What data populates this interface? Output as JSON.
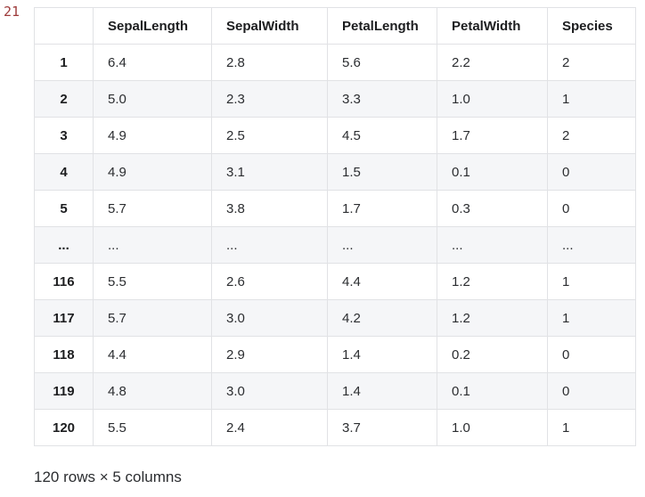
{
  "execution_count": "21",
  "colors": {
    "execution_count": "#9e3b3b",
    "stripe": "#f5f6f8",
    "border": "#e1e2e5",
    "header_text": "#1c1d1f",
    "body_text": "#2b2d30"
  },
  "table": {
    "columns": [
      "",
      "SepalLength",
      "SepalWidth",
      "PetalLength",
      "PetalWidth",
      "Species"
    ],
    "rows": [
      {
        "index": "1",
        "cells": [
          "6.4",
          "2.8",
          "5.6",
          "2.2",
          "2"
        ]
      },
      {
        "index": "2",
        "cells": [
          "5.0",
          "2.3",
          "3.3",
          "1.0",
          "1"
        ]
      },
      {
        "index": "3",
        "cells": [
          "4.9",
          "2.5",
          "4.5",
          "1.7",
          "2"
        ]
      },
      {
        "index": "4",
        "cells": [
          "4.9",
          "3.1",
          "1.5",
          "0.1",
          "0"
        ]
      },
      {
        "index": "5",
        "cells": [
          "5.7",
          "3.8",
          "1.7",
          "0.3",
          "0"
        ]
      },
      {
        "index": "...",
        "cells": [
          "...",
          "...",
          "...",
          "...",
          "..."
        ]
      },
      {
        "index": "116",
        "cells": [
          "5.5",
          "2.6",
          "4.4",
          "1.2",
          "1"
        ]
      },
      {
        "index": "117",
        "cells": [
          "5.7",
          "3.0",
          "4.2",
          "1.2",
          "1"
        ]
      },
      {
        "index": "118",
        "cells": [
          "4.4",
          "2.9",
          "1.4",
          "0.2",
          "0"
        ]
      },
      {
        "index": "119",
        "cells": [
          "4.8",
          "3.0",
          "1.4",
          "0.1",
          "0"
        ]
      },
      {
        "index": "120",
        "cells": [
          "5.5",
          "2.4",
          "3.7",
          "1.0",
          "1"
        ]
      }
    ],
    "summary": "120 rows × 5 columns"
  }
}
